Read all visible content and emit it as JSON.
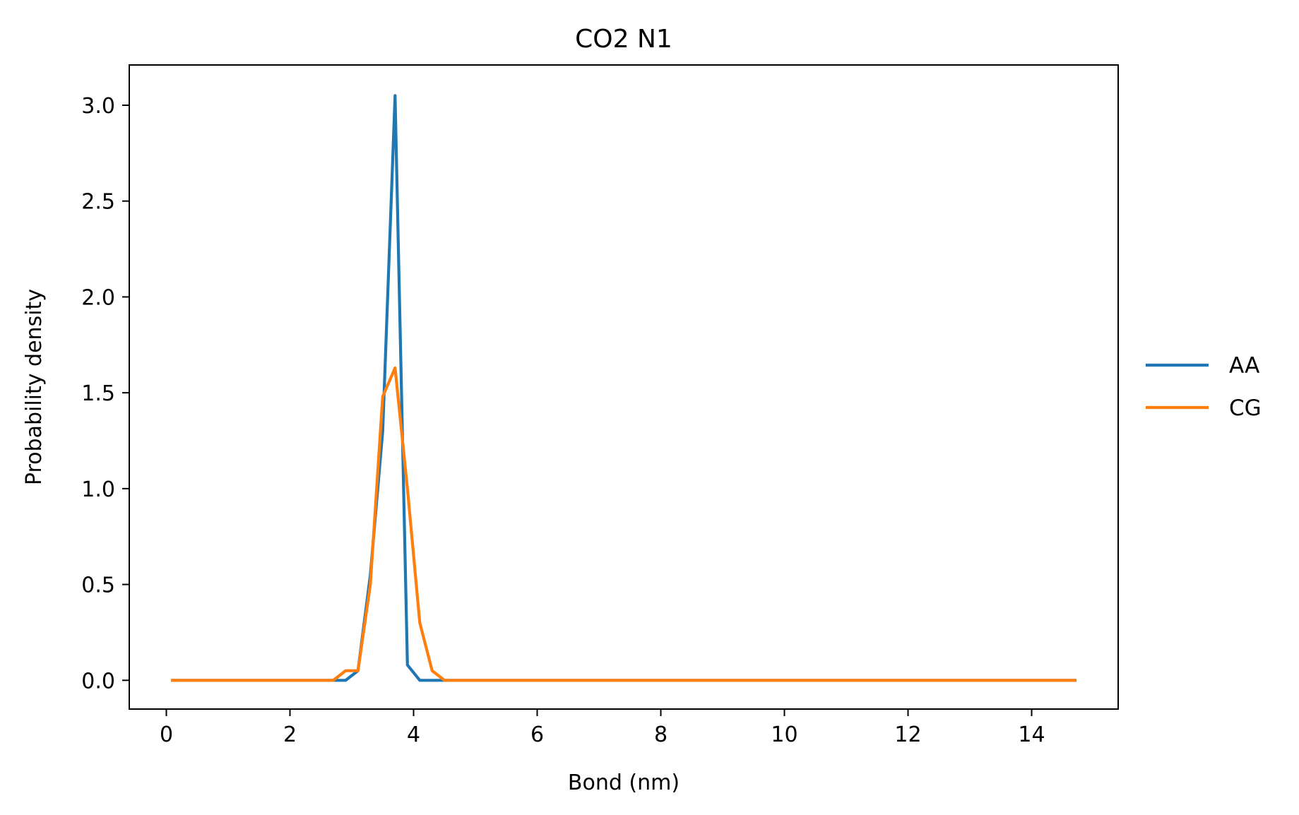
{
  "chart_data": {
    "type": "line",
    "title": "CO2 N1",
    "xlabel": "Bond (nm)",
    "ylabel": "Probability density",
    "xlim": [
      -0.6,
      15.4
    ],
    "ylim": [
      -0.15,
      3.21
    ],
    "xticks": [
      0,
      2,
      4,
      6,
      8,
      10,
      12,
      14
    ],
    "xtick_labels": [
      "0",
      "2",
      "4",
      "6",
      "8",
      "10",
      "12",
      "14"
    ],
    "yticks": [
      0.0,
      0.5,
      1.0,
      1.5,
      2.0,
      2.5,
      3.0
    ],
    "ytick_labels": [
      "0.0",
      "0.5",
      "1.0",
      "1.5",
      "2.0",
      "2.5",
      "3.0"
    ],
    "grid": false,
    "legend_position": "center-right-outside",
    "series": [
      {
        "name": "AA",
        "color": "#1f77b4",
        "x": [
          0.1,
          2.7,
          2.9,
          3.1,
          3.3,
          3.5,
          3.7,
          3.9,
          4.1,
          4.3,
          4.5,
          14.7
        ],
        "y": [
          0.0,
          0.0,
          0.0,
          0.05,
          0.55,
          1.3,
          3.05,
          0.08,
          0.0,
          0.0,
          0.0,
          0.0
        ]
      },
      {
        "name": "CG",
        "color": "#ff7f0e",
        "x": [
          0.1,
          2.7,
          2.9,
          3.1,
          3.3,
          3.5,
          3.7,
          3.9,
          4.1,
          4.3,
          4.5,
          14.7
        ],
        "y": [
          0.0,
          0.0,
          0.05,
          0.05,
          0.5,
          1.48,
          1.63,
          1.0,
          0.3,
          0.05,
          0.0,
          0.0
        ]
      }
    ]
  }
}
